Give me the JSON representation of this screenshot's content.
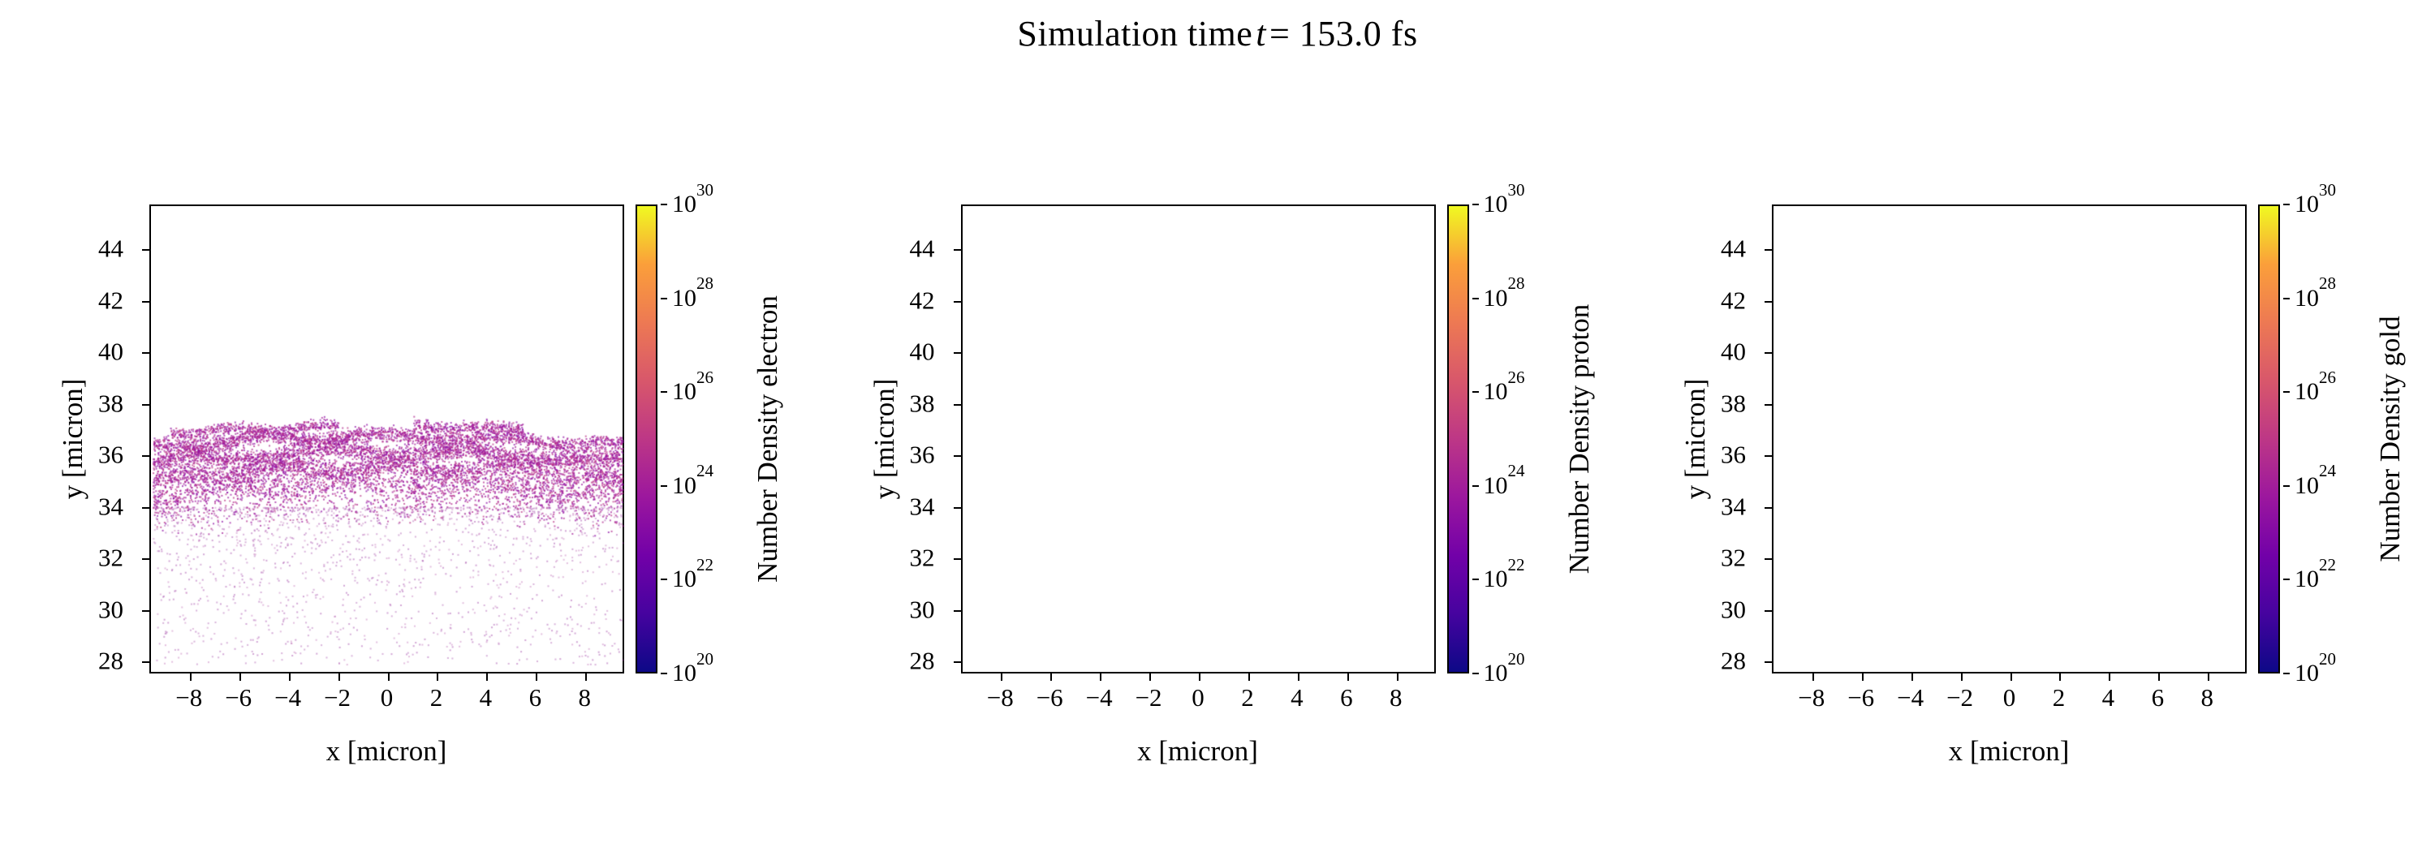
{
  "title": {
    "prefix": "Simulation time",
    "variable": "t",
    "suffix": "= 153.0 fs"
  },
  "chart_data": [
    {
      "type": "scatter",
      "species": "electron",
      "xlabel": "x [micron]",
      "ylabel": "y [micron]",
      "xlim": [
        -9.6,
        9.6
      ],
      "ylim": [
        27.5,
        45.7
      ],
      "grid": false,
      "xtick_values": [
        -8,
        -6,
        -4,
        -2,
        0,
        2,
        4,
        6,
        8
      ],
      "xtick_labels": [
        "−8",
        "−6",
        "−4",
        "−2",
        "0",
        "2",
        "4",
        "6",
        "8"
      ],
      "ytick_values": [
        28,
        30,
        32,
        34,
        36,
        38,
        40,
        42,
        44
      ],
      "ytick_labels": [
        "28",
        "30",
        "32",
        "34",
        "36",
        "38",
        "40",
        "42",
        "44"
      ],
      "colorbar": {
        "label": "Number Density electron",
        "scale": "log",
        "tick_base": "10",
        "exponent_range": [
          20,
          30
        ],
        "tick_exponents": [
          20,
          22,
          24,
          26,
          28,
          30
        ],
        "colormap": "plasma",
        "colormap_stops": [
          "#0d0887",
          "#46039f",
          "#7201a8",
          "#9c179e",
          "#bd3786",
          "#d8576b",
          "#ed7953",
          "#fb9f3a",
          "#f0f921"
        ]
      },
      "scatter": {
        "seed": 7,
        "x_range": [
          -9.5,
          9.5
        ],
        "dome_half_width": 9.5,
        "bands": [
          {
            "y_center": 36.85,
            "y_spread": 0.12,
            "count": 900,
            "dome": 0.3,
            "wave": 0.08,
            "wave_freq": 1.8,
            "wave_phase": 0.3,
            "x_segments": [
              [
                -8.8,
                -2.0
              ],
              [
                1.0,
                5.5
              ]
            ]
          },
          {
            "y_center": 36.35,
            "y_spread": 0.15,
            "count": 2200,
            "dome": 0.4,
            "wave": 0.12,
            "wave_freq": 1.3,
            "wave_phase": 2.0
          },
          {
            "y_center": 35.7,
            "y_spread": 0.18,
            "count": 2600,
            "dome": 0.45,
            "wave": 0.14,
            "wave_freq": 1.1,
            "wave_phase": 4.2
          },
          {
            "y_center": 35.05,
            "y_spread": 0.2,
            "count": 2200,
            "dome": 0.5,
            "wave": 0.12,
            "wave_freq": 1.5,
            "wave_phase": 1.2
          },
          {
            "y_center": 34.4,
            "y_spread": 0.25,
            "count": 1500,
            "dome": 0.55,
            "wave": 0.1,
            "wave_freq": 1.2,
            "wave_phase": 3.4
          },
          {
            "y_center": 33.7,
            "y_spread": 0.38,
            "count": 800,
            "dome": 0.55,
            "wave": 0.08,
            "wave_freq": 1.0,
            "wave_phase": 5.0
          }
        ],
        "halo": {
          "y_top": 34.0,
          "y_bottom": 27.9,
          "count": 1600,
          "bias": 2.2
        },
        "colors": [
          "#9c179e",
          "#a31a96",
          "#b02a8f",
          "#8f0fa5",
          "#bb3488"
        ],
        "halo_colors": [
          "#b469b8",
          "#a84fae",
          "#c77fc0"
        ],
        "dot_size": 2,
        "alpha": 0.7,
        "halo_alpha": 0.5
      }
    },
    {
      "type": "scatter",
      "species": "proton",
      "xlabel": "x [micron]",
      "ylabel": "y [micron]",
      "xlim": [
        -9.6,
        9.6
      ],
      "ylim": [
        27.5,
        45.7
      ],
      "grid": false,
      "xtick_values": [
        -8,
        -6,
        -4,
        -2,
        0,
        2,
        4,
        6,
        8
      ],
      "xtick_labels": [
        "−8",
        "−6",
        "−4",
        "−2",
        "0",
        "2",
        "4",
        "6",
        "8"
      ],
      "ytick_values": [
        28,
        30,
        32,
        34,
        36,
        38,
        40,
        42,
        44
      ],
      "ytick_labels": [
        "28",
        "30",
        "32",
        "34",
        "36",
        "38",
        "40",
        "42",
        "44"
      ],
      "colorbar": {
        "label": "Number Density proton",
        "scale": "log",
        "tick_base": "10",
        "exponent_range": [
          20,
          30
        ],
        "tick_exponents": [
          20,
          22,
          24,
          26,
          28,
          30
        ],
        "colormap": "plasma",
        "colormap_stops": [
          "#0d0887",
          "#46039f",
          "#7201a8",
          "#9c179e",
          "#bd3786",
          "#d8576b",
          "#ed7953",
          "#fb9f3a",
          "#f0f921"
        ]
      },
      "scatter": null
    },
    {
      "type": "scatter",
      "species": "gold",
      "xlabel": "x [micron]",
      "ylabel": "y [micron]",
      "xlim": [
        -9.6,
        9.6
      ],
      "ylim": [
        27.5,
        45.7
      ],
      "grid": false,
      "xtick_values": [
        -8,
        -6,
        -4,
        -2,
        0,
        2,
        4,
        6,
        8
      ],
      "xtick_labels": [
        "−8",
        "−6",
        "−4",
        "−2",
        "0",
        "2",
        "4",
        "6",
        "8"
      ],
      "ytick_values": [
        28,
        30,
        32,
        34,
        36,
        38,
        40,
        42,
        44
      ],
      "ytick_labels": [
        "28",
        "30",
        "32",
        "34",
        "36",
        "38",
        "40",
        "42",
        "44"
      ],
      "colorbar": {
        "label": "Number Density gold",
        "scale": "log",
        "tick_base": "10",
        "exponent_range": [
          20,
          30
        ],
        "tick_exponents": [
          20,
          22,
          24,
          26,
          28,
          30
        ],
        "colormap": "plasma",
        "colormap_stops": [
          "#0d0887",
          "#46039f",
          "#7201a8",
          "#9c179e",
          "#bd3786",
          "#d8576b",
          "#ed7953",
          "#fb9f3a",
          "#f0f921"
        ]
      },
      "scatter": null
    }
  ]
}
